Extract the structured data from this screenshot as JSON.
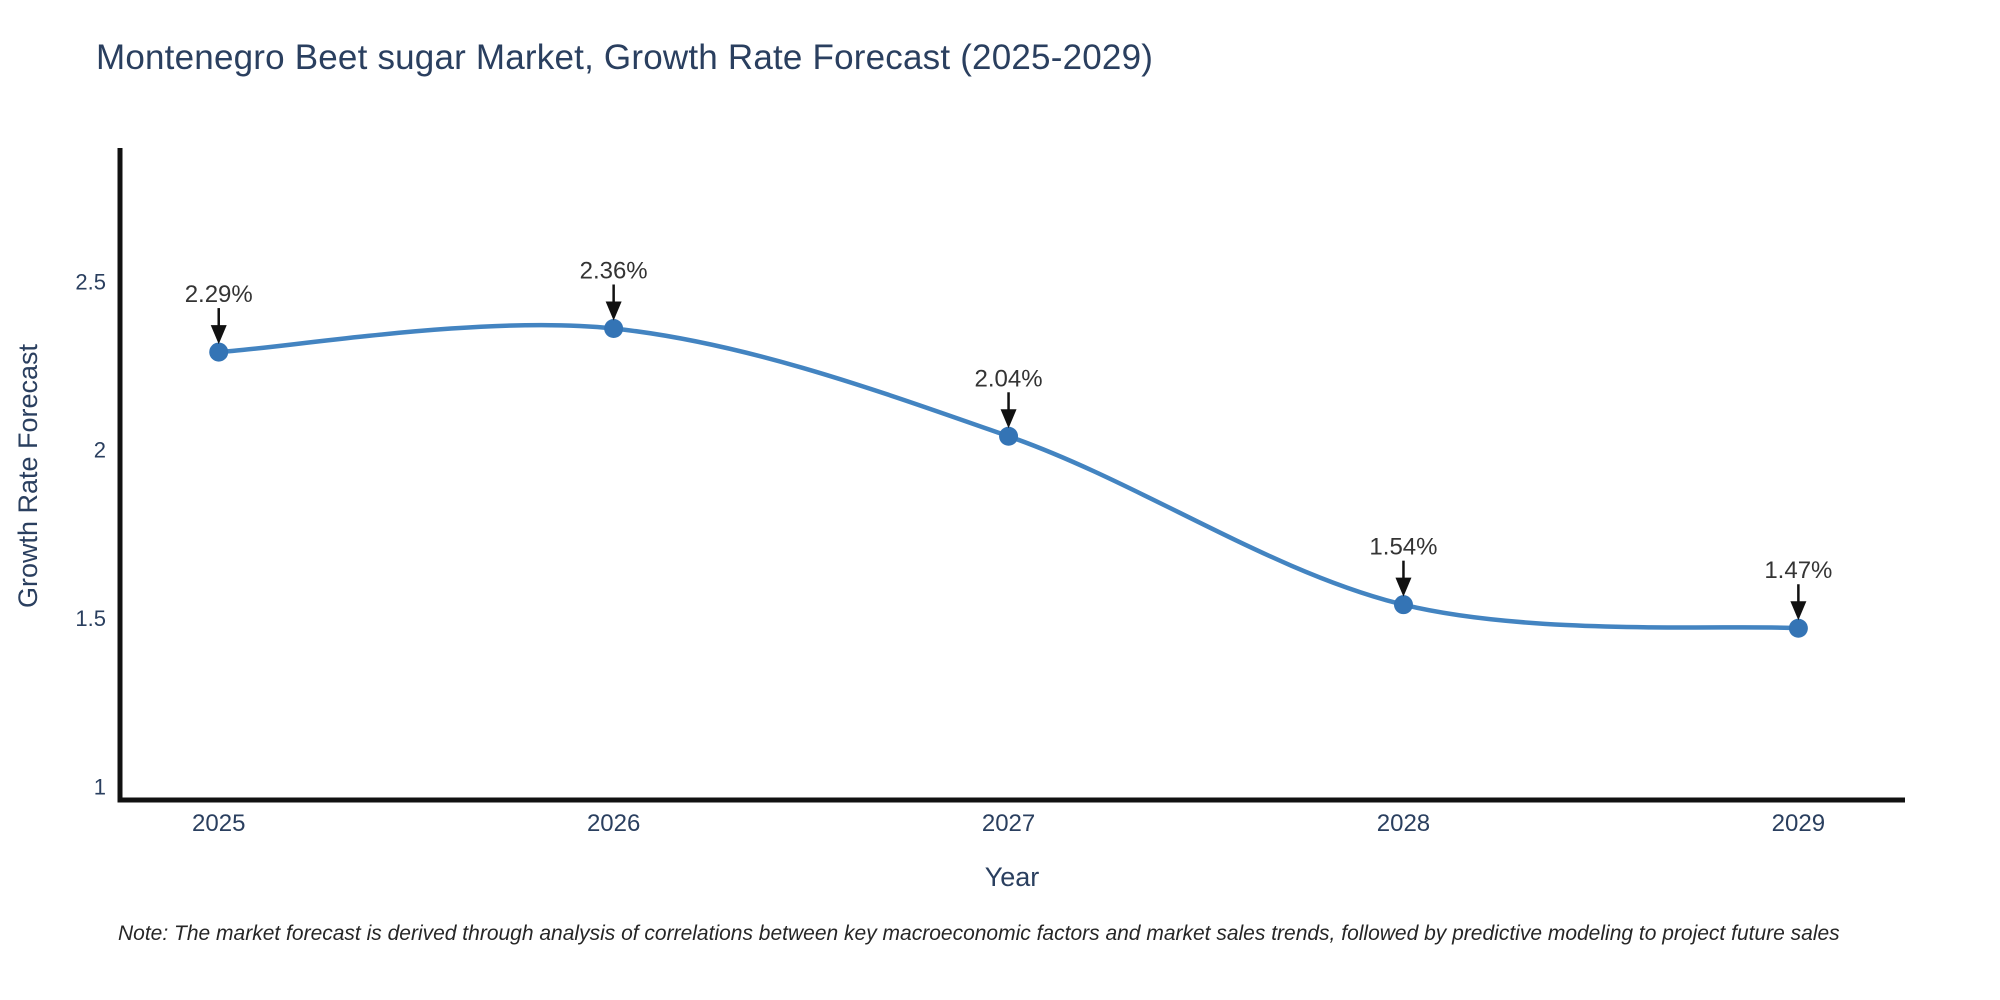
{
  "title": "Montenegro Beet sugar Market, Growth Rate Forecast (2025-2029)",
  "note": "Note: The market forecast is derived through analysis of correlations between key macroeconomic factors and market sales trends, followed by predictive modeling to project future sales",
  "chart_data": {
    "type": "line",
    "title": "Montenegro Beet sugar Market, Growth Rate Forecast (2025-2029)",
    "xlabel": "Year",
    "ylabel": "Growth Rate Forecast",
    "categories": [
      2025,
      2026,
      2027,
      2028,
      2029
    ],
    "values": [
      2.29,
      2.36,
      2.04,
      1.54,
      1.47
    ],
    "point_labels": [
      "2.29%",
      "2.36%",
      "2.04%",
      "1.54%",
      "1.47%"
    ],
    "xtick_labels": [
      "2025",
      "2026",
      "2027",
      "2028",
      "2029"
    ],
    "yticks": [
      1,
      1.5,
      2,
      2.5
    ],
    "ytick_labels": [
      "1",
      "1.5",
      "2",
      "2.5"
    ],
    "xlim": [
      2024.75,
      2029.27
    ],
    "ylim": [
      0.96,
      2.89
    ],
    "grid": false,
    "legend": "none",
    "line_shape": "spline",
    "annotation_style": "percentage label above each point with black arrow pointing down to marker",
    "colors": {
      "line": "#4384c1",
      "marker": "#3474b5",
      "axis": "#111111",
      "tick_text": "#2a3f5f",
      "title_text": "#2a3f5f",
      "annotation_text": "#343434",
      "arrow": "#111111",
      "note_text": "#262626",
      "background": "#ffffff"
    }
  }
}
